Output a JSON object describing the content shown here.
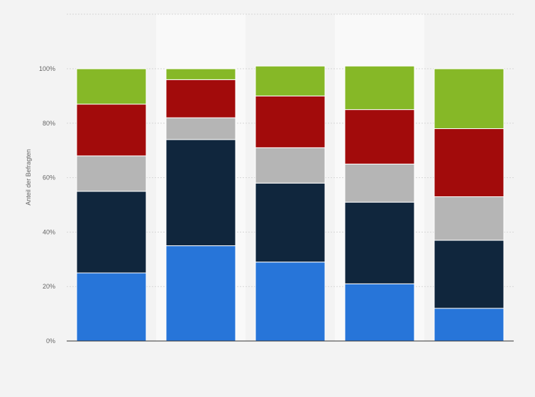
{
  "chart_data": {
    "type": "bar",
    "stacked": true,
    "title": "",
    "xlabel": "",
    "ylabel": "Anteil der Befragten",
    "ylim": [
      0,
      100
    ],
    "yticks": [
      "0%",
      "20%",
      "40%",
      "60%",
      "80%",
      "100%"
    ],
    "grid": true,
    "categories": [
      "",
      "",
      "",
      "",
      ""
    ],
    "series": [
      {
        "color": "#2775d9",
        "values": [
          25,
          35,
          29,
          21,
          12
        ]
      },
      {
        "color": "#10263d",
        "values": [
          30,
          39,
          29,
          30,
          25
        ]
      },
      {
        "color": "#b5b5b5",
        "values": [
          13,
          8,
          13,
          14,
          16
        ]
      },
      {
        "color": "#a20b0b",
        "values": [
          19,
          14,
          19,
          20,
          25
        ]
      },
      {
        "color": "#86b827",
        "values": [
          13,
          4,
          11,
          16,
          22
        ]
      }
    ],
    "background_color": "#f3f3f3",
    "band_color": "#f9f9f9"
  }
}
